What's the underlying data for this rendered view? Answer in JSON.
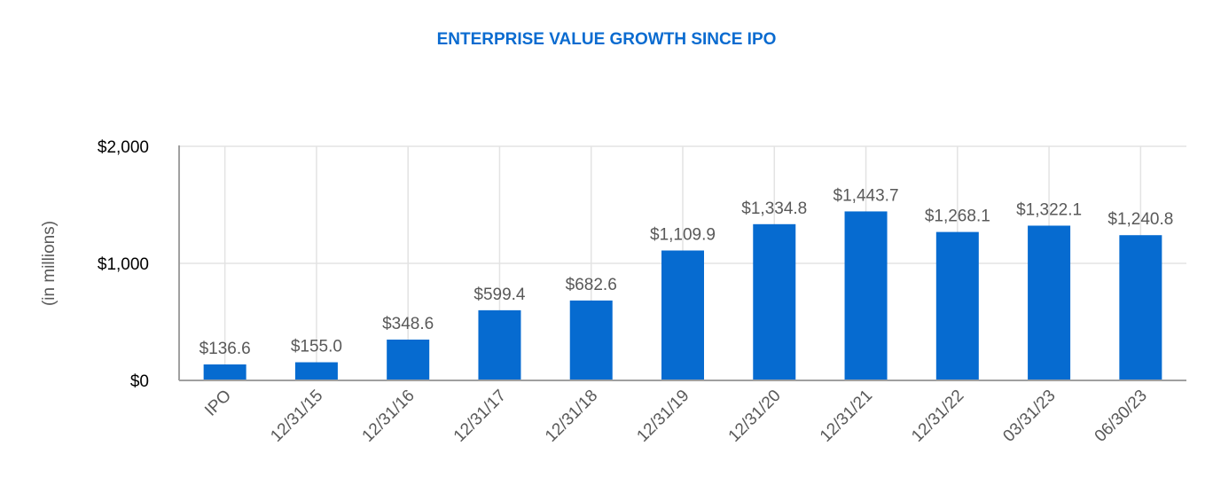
{
  "chart_data": {
    "type": "bar",
    "title": "ENTERPRISE VALUE GROWTH SINCE IPO",
    "ylabel": "(in millions)",
    "xlabel": "",
    "categories": [
      "IPO",
      "12/31/15",
      "12/31/16",
      "12/31/17",
      "12/31/18",
      "12/31/19",
      "12/31/20",
      "12/31/21",
      "12/31/22",
      "03/31/23",
      "06/30/23"
    ],
    "values": [
      136.6,
      155.0,
      348.6,
      599.4,
      682.6,
      1109.9,
      1334.8,
      1443.7,
      1268.1,
      1322.1,
      1240.8
    ],
    "data_labels": [
      "$136.6",
      "$155.0",
      "$348.6",
      "$599.4",
      "$682.6",
      "$1,109.9",
      "$1,334.8",
      "$1,443.7",
      "$1,268.1",
      "$1,322.1",
      "$1,240.8"
    ],
    "ylim": [
      0,
      2000
    ],
    "yticks": [
      0,
      1000,
      2000
    ],
    "ytick_labels": [
      "$0",
      "$1,000",
      "$2,000"
    ],
    "grid": true,
    "legend": "none",
    "colors": {
      "bar": "#066bd0",
      "title": "#0a6bd0",
      "label": "#595959"
    }
  }
}
